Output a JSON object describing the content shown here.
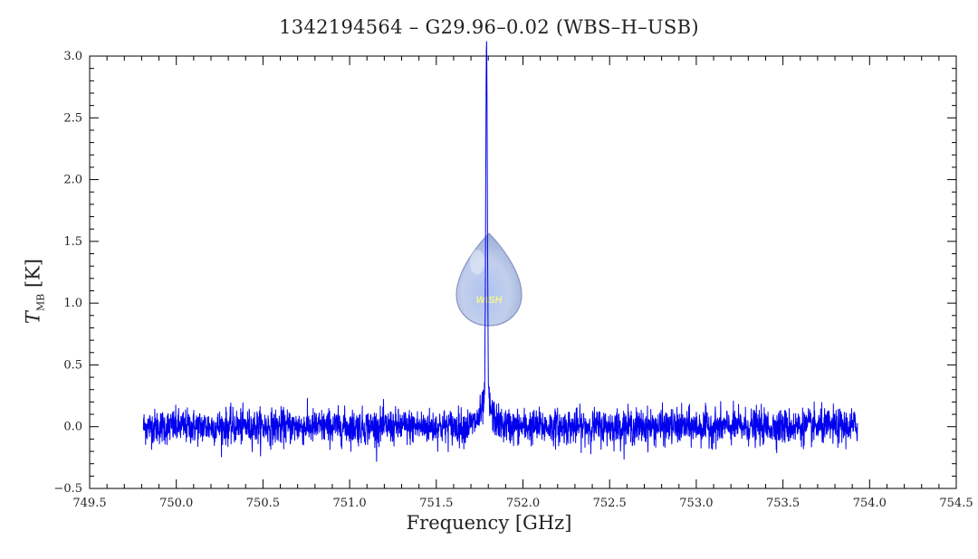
{
  "chart_data": {
    "type": "line",
    "title": "1342194564 – G29.96–0.02 (WBS–H–USB)",
    "xlabel": "Frequency [GHz]",
    "ylabel_symbol": "T",
    "ylabel_sub": "MB",
    "ylabel_unit": "[K]",
    "xlim": [
      749.5,
      754.5
    ],
    "ylim": [
      -0.5,
      3.0
    ],
    "xticks": [
      "749.5",
      "750.0",
      "750.5",
      "751.0",
      "751.5",
      "752.0",
      "752.5",
      "753.0",
      "753.5",
      "754.0",
      "754.5"
    ],
    "yticks": [
      "−0.5",
      "0.0",
      "0.5",
      "1.0",
      "1.5",
      "2.0",
      "2.5",
      "3.0"
    ],
    "series": [
      {
        "color": "#0000ee",
        "x_range": [
          749.81,
          753.93
        ],
        "baseline": 0.0,
        "noise_rms": 0.07,
        "line_center": 751.79,
        "line_peak": 2.79,
        "points": [
          [
            749.81,
            0.02
          ],
          [
            750.0,
            0.01
          ],
          [
            750.2,
            0.02
          ],
          [
            750.5,
            0.0
          ],
          [
            751.0,
            0.01
          ],
          [
            751.4,
            0.0
          ],
          [
            751.65,
            0.02
          ],
          [
            751.7,
            0.08
          ],
          [
            751.73,
            0.28
          ],
          [
            751.75,
            0.55
          ],
          [
            751.77,
            1.3
          ],
          [
            751.78,
            2.5
          ],
          [
            751.79,
            2.79
          ],
          [
            751.8,
            2.3
          ],
          [
            751.81,
            0.95
          ],
          [
            751.83,
            0.35
          ],
          [
            751.86,
            0.12
          ],
          [
            751.9,
            0.05
          ],
          [
            751.97,
            -0.3
          ],
          [
            752.0,
            0.02
          ],
          [
            752.5,
            0.0
          ],
          [
            753.0,
            0.01
          ],
          [
            753.5,
            0.0
          ],
          [
            753.93,
            0.02
          ]
        ]
      }
    ],
    "watermark": "WISH"
  }
}
